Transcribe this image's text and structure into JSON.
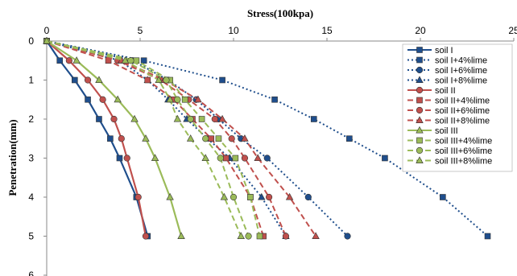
{
  "chart_data": {
    "type": "line",
    "title": "",
    "xlabel": "Stress(100kpa)",
    "ylabel": "Penetration(mm)",
    "xlim": [
      0,
      25
    ],
    "ylim": [
      0,
      6
    ],
    "y_inverted": true,
    "x_axis_position": "top",
    "x_ticks": [
      "0",
      "5",
      "10",
      "15",
      "20",
      "25"
    ],
    "y_ticks": [
      "0",
      "1",
      "2",
      "3",
      "4",
      "5",
      "6"
    ],
    "grid": false,
    "legend_position": "right",
    "y": [
      0,
      0.5,
      1,
      1.5,
      2,
      2.5,
      3,
      4,
      5
    ],
    "series": [
      {
        "name": "soil I",
        "color": "#1f4e8c",
        "dash": "solid",
        "marker": "square",
        "x": [
          0,
          0.7,
          1.5,
          2.2,
          2.8,
          3.4,
          3.9,
          4.8,
          5.4
        ]
      },
      {
        "name": "soil I+4%lime",
        "color": "#1f4e8c",
        "dash": "dotted",
        "marker": "square",
        "x": [
          0,
          5.2,
          9.4,
          12.2,
          14.3,
          16.2,
          18.1,
          21.2,
          23.6
        ]
      },
      {
        "name": "soil I+6%lime",
        "color": "#1f4e8c",
        "dash": "dotted",
        "marker": "circle",
        "x": [
          0,
          4.6,
          6.5,
          8.0,
          9.2,
          10.4,
          11.8,
          14.0,
          16.1
        ]
      },
      {
        "name": "soil I+8%lime",
        "color": "#1f4e8c",
        "dash": "dotted",
        "marker": "triangle",
        "x": [
          0,
          3.9,
          5.4,
          6.5,
          7.5,
          8.6,
          9.8,
          11.5,
          12.8
        ]
      },
      {
        "name": "soil II",
        "color": "#c0504d",
        "dash": "solid",
        "marker": "circle",
        "x": [
          0,
          1.2,
          2.2,
          3.0,
          3.6,
          4.0,
          4.3,
          4.9,
          5.3
        ]
      },
      {
        "name": "soil II+4%lime",
        "color": "#c0504d",
        "dash": "dashed",
        "marker": "square",
        "x": [
          0,
          3.3,
          5.4,
          6.8,
          7.8,
          8.8,
          9.6,
          10.9,
          11.6
        ]
      },
      {
        "name": "soil II+6%lime",
        "color": "#c0504d",
        "dash": "dashed",
        "marker": "circle",
        "x": [
          0,
          3.8,
          6.1,
          7.6,
          9.0,
          9.9,
          10.6,
          11.9,
          12.8
        ]
      },
      {
        "name": "soil II+8%lime",
        "color": "#c0504d",
        "dash": "dashed",
        "marker": "triangle",
        "x": [
          0,
          4.0,
          6.3,
          8.1,
          9.4,
          10.6,
          11.3,
          13.0,
          14.4
        ]
      },
      {
        "name": "soil III",
        "color": "#9bbb59",
        "dash": "solid",
        "marker": "triangle",
        "x": [
          0,
          1.6,
          2.8,
          3.8,
          4.7,
          5.3,
          5.8,
          6.6,
          7.2
        ]
      },
      {
        "name": "soil III+4%lime",
        "color": "#9bbb59",
        "dash": "dashed",
        "marker": "square",
        "x": [
          0,
          4.8,
          6.6,
          7.4,
          8.3,
          9.2,
          10.1,
          10.9,
          11.4
        ]
      },
      {
        "name": "soil III+6%lime",
        "color": "#9bbb59",
        "dash": "dashed",
        "marker": "circle",
        "x": [
          0,
          4.5,
          6.4,
          7.0,
          7.7,
          8.5,
          9.3,
          10.0,
          10.8
        ]
      },
      {
        "name": "soil III+8%lime",
        "color": "#9bbb59",
        "dash": "dashed",
        "marker": "triangle",
        "x": [
          0,
          4.2,
          6.0,
          6.6,
          7.0,
          7.7,
          8.5,
          9.5,
          10.4
        ]
      }
    ]
  }
}
